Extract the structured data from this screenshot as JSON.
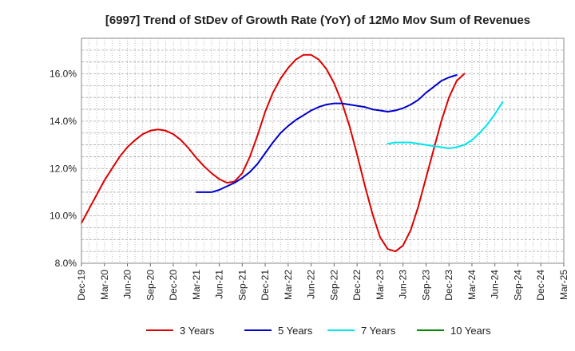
{
  "chart_data": {
    "type": "line",
    "title": "[6997]  Trend of StDev of Growth Rate (YoY) of 12Mo Mov Sum of Revenues",
    "xlabel": "",
    "ylabel": "",
    "ylim": [
      8.0,
      17.5
    ],
    "y_ticks": [
      8.0,
      10.0,
      12.0,
      14.0,
      16.0
    ],
    "y_tick_labels": [
      "8.0%",
      "10.0%",
      "12.0%",
      "14.0%",
      "16.0%"
    ],
    "x_tick_labels": [
      "Dec-19",
      "Mar-20",
      "Jun-20",
      "Sep-20",
      "Dec-20",
      "Mar-21",
      "Jun-21",
      "Sep-21",
      "Dec-21",
      "Mar-22",
      "Jun-22",
      "Sep-22",
      "Dec-22",
      "Mar-23",
      "Jun-23",
      "Sep-23",
      "Dec-23",
      "Mar-24",
      "Jun-24",
      "Sep-24",
      "Dec-24",
      "Mar-25"
    ],
    "grid": true,
    "legend_position": "bottom",
    "series": [
      {
        "name": "3 Years",
        "color": "#dd0000",
        "start_index": 0,
        "values": [
          9.7,
          10.3,
          10.9,
          11.5,
          12.0,
          12.5,
          12.9,
          13.2,
          13.45,
          13.6,
          13.65,
          13.6,
          13.45,
          13.2,
          12.85,
          12.45,
          12.1,
          11.8,
          11.55,
          11.4,
          11.45,
          11.8,
          12.5,
          13.4,
          14.4,
          15.2,
          15.8,
          16.25,
          16.6,
          16.8,
          16.8,
          16.6,
          16.2,
          15.6,
          14.8,
          13.8,
          12.6,
          11.3,
          10.1,
          9.1,
          8.6,
          8.5,
          8.75,
          9.4,
          10.4,
          11.6,
          12.8,
          14.0,
          15.0,
          15.7,
          16.0
        ]
      },
      {
        "name": "5 Years",
        "color": "#0000cc",
        "start_index": 15,
        "values": [
          11.0,
          11.0,
          11.0,
          11.1,
          11.25,
          11.4,
          11.6,
          11.85,
          12.2,
          12.65,
          13.1,
          13.5,
          13.8,
          14.05,
          14.25,
          14.45,
          14.6,
          14.7,
          14.75,
          14.75,
          14.7,
          14.65,
          14.6,
          14.5,
          14.45,
          14.4,
          14.45,
          14.55,
          14.7,
          14.9,
          15.2,
          15.45,
          15.7,
          15.85,
          15.95
        ]
      },
      {
        "name": "7 Years",
        "color": "#00e5ee",
        "start_index": 40,
        "values": [
          13.05,
          13.1,
          13.1,
          13.1,
          13.05,
          13.0,
          12.95,
          12.9,
          12.85,
          12.9,
          13.0,
          13.2,
          13.5,
          13.85,
          14.3,
          14.8
        ]
      },
      {
        "name": "10 Years",
        "color": "#008800",
        "start_index": 0,
        "values": []
      }
    ]
  }
}
